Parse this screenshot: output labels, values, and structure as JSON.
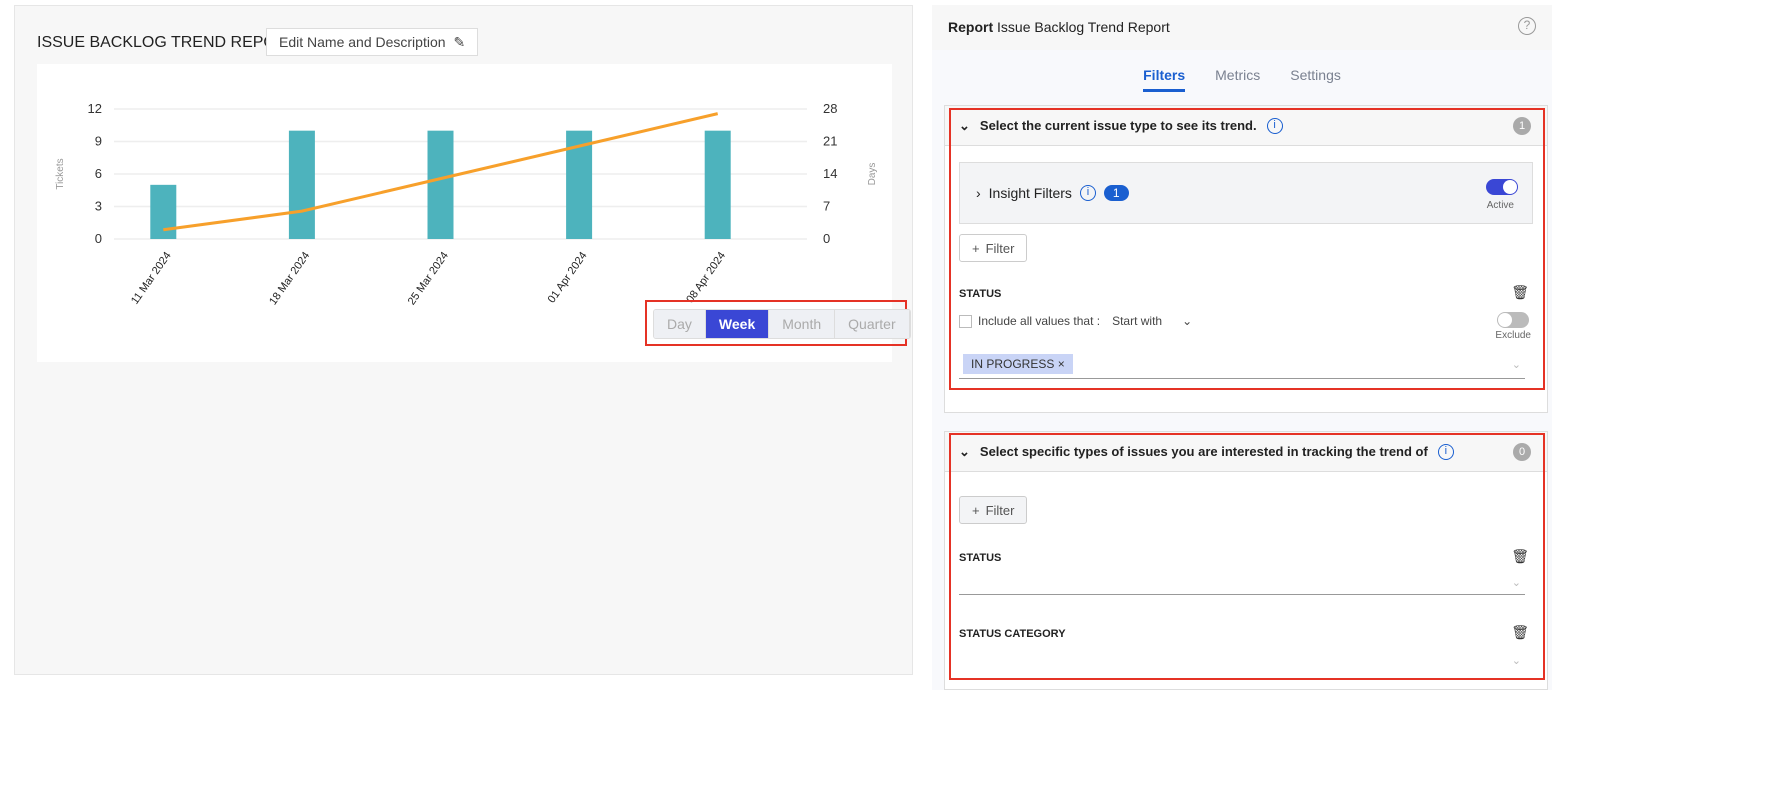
{
  "report": {
    "title": "ISSUE BACKLOG TREND REPORT",
    "edit_label": "Edit Name and Description"
  },
  "chart_data": {
    "type": "bar+line",
    "categories": [
      "11 Mar 2024",
      "18 Mar 2024",
      "25 Mar 2024",
      "01 Apr 2024",
      "08 Apr 2024"
    ],
    "series": [
      {
        "type": "bar",
        "axis": "left",
        "color": "#4db3bd",
        "values": [
          5,
          10,
          10,
          10,
          10
        ]
      },
      {
        "type": "line",
        "axis": "right",
        "color": "#f7a02b",
        "values": [
          2,
          6,
          13,
          20,
          27
        ]
      }
    ],
    "ylabel": "Tickets",
    "y2label": "Days",
    "ylim": [
      0,
      12
    ],
    "y2lim": [
      0,
      28
    ],
    "yticks": [
      "0",
      "3",
      "6",
      "9",
      "12"
    ],
    "y2ticks": [
      "0",
      "7",
      "14",
      "21",
      "28"
    ],
    "grid": true
  },
  "granularity": {
    "options": [
      "Day",
      "Week",
      "Month",
      "Quarter"
    ],
    "selected": "Week"
  },
  "panel": {
    "label": "Report",
    "name": "Issue Backlog Trend Report",
    "help": "?",
    "tabs": [
      {
        "label": "Filters",
        "active": true
      },
      {
        "label": "Metrics"
      },
      {
        "label": "Settings"
      }
    ]
  },
  "section1": {
    "title": "Select the current issue type to see its trend.",
    "count": "1",
    "insight_label": "Insight Filters",
    "insight_count": "1",
    "active_label": "Active",
    "filter_label": "Filter",
    "status_label": "STATUS",
    "include_label": "Include all values that :",
    "match_value": "Start with",
    "exclude_label": "Exclude",
    "chip": "IN PROGRESS"
  },
  "section2": {
    "title": "Select specific types of issues you are interested in tracking the trend of",
    "count": "0",
    "filter_label": "Filter",
    "status_label": "STATUS",
    "status_category_label": "STATUS CATEGORY"
  }
}
